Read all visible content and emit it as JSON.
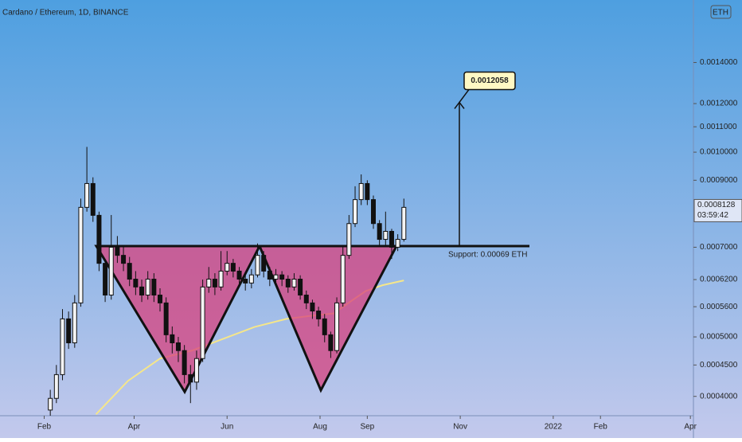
{
  "chart_data": {
    "type": "candlestick",
    "title": "Cardano / Ethereum, 1D, BINANCE",
    "currency": "ETH",
    "log_scale": true,
    "color": "#111111",
    "x": [
      4,
      8,
      12,
      16,
      20,
      24,
      28,
      32,
      36,
      40,
      44,
      48,
      52,
      56,
      60,
      64,
      68,
      72,
      76,
      80,
      84,
      88,
      92,
      96,
      100,
      104,
      108,
      112,
      116,
      120,
      124,
      128,
      132,
      136,
      140,
      144,
      148,
      152,
      156,
      160,
      164,
      168,
      172,
      176,
      180,
      184,
      188,
      192,
      196,
      200,
      204,
      208,
      212,
      216,
      220,
      224,
      228,
      232,
      236
    ],
    "open": [
      0.00038,
      0.000397,
      0.000434,
      0.000535,
      0.000489,
      0.000568,
      0.000813,
      0.000889,
      0.000789,
      0.000659,
      0.000585,
      0.0007,
      0.000679,
      0.000659,
      0.000621,
      0.000603,
      0.000585,
      0.000621,
      0.000585,
      0.000568,
      0.000504,
      0.000489,
      0.000475,
      0.000434,
      0.000422,
      0.000461,
      0.000603,
      0.000621,
      0.000603,
      0.00064,
      0.000659,
      0.00064,
      0.000621,
      0.000612,
      0.000631,
      0.000679,
      0.00064,
      0.000621,
      0.000631,
      0.000621,
      0.000603,
      0.000621,
      0.000585,
      0.000568,
      0.000551,
      0.000535,
      0.000504,
      0.000475,
      0.000568,
      0.000679,
      0.000765,
      0.000837,
      0.000889,
      0.000837,
      0.000765,
      0.000721,
      0.000743,
      0.0007,
      0.000721
    ],
    "high": [
      0.00041,
      0.00045,
      0.000555,
      0.00055,
      0.000585,
      0.00084,
      0.00102,
      0.00091,
      0.0008,
      0.00067,
      0.00079,
      0.00073,
      0.0007,
      0.000675,
      0.00064,
      0.00062,
      0.00064,
      0.000635,
      0.0006,
      0.00058,
      0.00052,
      0.0005,
      0.000485,
      0.00045,
      0.000475,
      0.00062,
      0.00065,
      0.000635,
      0.00069,
      0.00069,
      0.00067,
      0.00065,
      0.000635,
      0.000645,
      0.00071,
      0.00069,
      0.00065,
      0.000645,
      0.00064,
      0.00063,
      0.000635,
      0.00063,
      0.000595,
      0.000575,
      0.00056,
      0.000545,
      0.00051,
      0.00058,
      0.0007,
      0.00079,
      0.00088,
      0.00092,
      0.0009,
      0.00085,
      0.000775,
      0.0008,
      0.00075,
      0.000735,
      0.00084
    ],
    "low": [
      0.000372,
      0.00039,
      0.000425,
      0.000478,
      0.00048,
      0.00056,
      0.0008,
      0.00077,
      0.00064,
      0.00057,
      0.000575,
      0.00066,
      0.00064,
      0.000605,
      0.000585,
      0.00057,
      0.000575,
      0.00057,
      0.00055,
      0.00049,
      0.00047,
      0.000455,
      0.00042,
      0.00039,
      0.00041,
      0.000455,
      0.00059,
      0.000585,
      0.000595,
      0.00063,
      0.000625,
      0.000605,
      0.000595,
      0.0006,
      0.000625,
      0.000625,
      0.000605,
      0.00061,
      0.000605,
      0.00059,
      0.000595,
      0.000575,
      0.000555,
      0.000535,
      0.00052,
      0.00049,
      0.000462,
      0.00047,
      0.00056,
      0.00067,
      0.000755,
      0.00082,
      0.00082,
      0.00075,
      0.0007,
      0.0007,
      0.00067,
      0.00069,
      0.000715
    ],
    "close": [
      0.000397,
      0.000434,
      0.000535,
      0.000489,
      0.000568,
      0.000813,
      0.000889,
      0.000789,
      0.000659,
      0.000585,
      0.0007,
      0.000679,
      0.000659,
      0.000621,
      0.000603,
      0.000585,
      0.000621,
      0.000585,
      0.000568,
      0.000504,
      0.000489,
      0.000475,
      0.000434,
      0.000422,
      0.000461,
      0.000603,
      0.000621,
      0.000603,
      0.00064,
      0.000659,
      0.00064,
      0.000621,
      0.000612,
      0.000631,
      0.000679,
      0.00064,
      0.000621,
      0.000631,
      0.000621,
      0.000603,
      0.000621,
      0.000585,
      0.000568,
      0.000551,
      0.000535,
      0.000504,
      0.000475,
      0.000568,
      0.000679,
      0.000765,
      0.000837,
      0.000889,
      0.000837,
      0.000765,
      0.000721,
      0.000743,
      0.0007,
      0.000721,
      0.000813
    ],
    "moving_average": {
      "color": "#f5e68a",
      "x": [
        34,
        55,
        76,
        97,
        118,
        138,
        159,
        180,
        190,
        201,
        211,
        222,
        236
      ],
      "values": [
        0.000374,
        0.000424,
        0.000461,
        0.000475,
        0.000497,
        0.000519,
        0.000535,
        0.000543,
        0.000546,
        0.000571,
        0.000594,
        0.000607,
        0.000618
      ]
    },
    "xlim": [
      -29,
      426
    ],
    "xticks": [
      {
        "value": 0,
        "label": "Feb"
      },
      {
        "value": 59,
        "label": "Apr"
      },
      {
        "value": 120,
        "label": "Jun"
      },
      {
        "value": 181,
        "label": "Aug"
      },
      {
        "value": 212,
        "label": "Sep"
      },
      {
        "value": 273,
        "label": "Nov"
      },
      {
        "value": 334,
        "label": "2022"
      },
      {
        "value": 365,
        "label": "Feb"
      },
      {
        "value": 424,
        "label": "Apr"
      }
    ],
    "ylim": [
      0.000372,
      0.00177
    ],
    "yticks": [
      {
        "value": 0.0014,
        "label": "0.0014000"
      },
      {
        "value": 0.0012,
        "label": "0.0012000"
      },
      {
        "value": 0.0011,
        "label": "0.0011000"
      },
      {
        "value": 0.001,
        "label": "0.0010000"
      },
      {
        "value": 0.0009,
        "label": "0.0009000"
      },
      {
        "value": 0.0007,
        "label": "0.0007000"
      },
      {
        "value": 0.00062,
        "label": "0.0006200"
      },
      {
        "value": 0.00056,
        "label": "0.0005600"
      },
      {
        "value": 0.0005,
        "label": "0.0005000"
      },
      {
        "value": 0.00045,
        "label": "0.0004500"
      },
      {
        "value": 0.0004,
        "label": "0.0004000"
      }
    ],
    "target": 0.0012058,
    "support_label": "Support: 0.00069 ETH",
    "last_price": 0.0008128,
    "countdown": "03:59:42"
  }
}
